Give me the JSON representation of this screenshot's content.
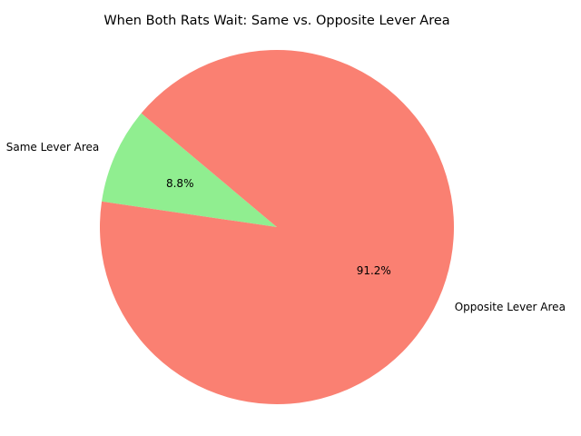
{
  "chart_data": {
    "type": "pie",
    "title": "When Both Rats Wait: Same vs. Opposite Lever Area",
    "categories": [
      "Same Lever Area",
      "Opposite Lever Area"
    ],
    "values": [
      8.8,
      91.2
    ],
    "percent_labels": [
      "8.8%",
      "91.2%"
    ],
    "colors": [
      "#90ee90",
      "#fa8072"
    ],
    "start_angle_deg": 140,
    "direction": "counterclockwise",
    "legend": "none"
  }
}
